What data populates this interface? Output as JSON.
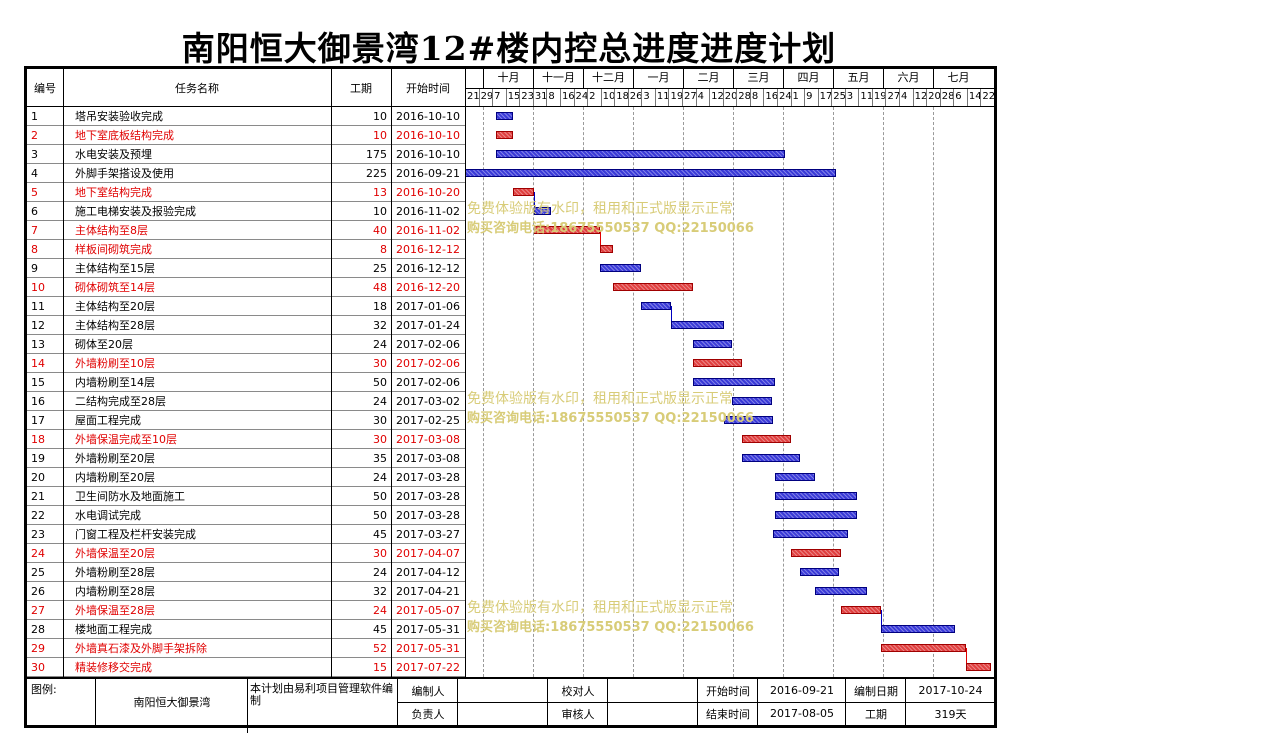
{
  "title": "南阳恒大御景湾12#楼内控总进度进度计划",
  "headers": {
    "id": "编号",
    "name": "任务名称",
    "duration": "工期",
    "start": "开始时间"
  },
  "months": [
    "十月",
    "十一月",
    "十二月",
    "一月",
    "二月",
    "三月",
    "四月",
    "五月",
    "六月",
    "七月"
  ],
  "days": [
    "21",
    "29",
    "7",
    "15",
    "23",
    "31",
    "8",
    "16",
    "24",
    "2",
    "10",
    "18",
    "26",
    "3",
    "11",
    "19",
    "27",
    "4",
    "12",
    "20",
    "28",
    "8",
    "16",
    "24",
    "1",
    "9",
    "17",
    "25",
    "3",
    "11",
    "19",
    "27",
    "4",
    "12",
    "20",
    "28",
    "6",
    "14",
    "22"
  ],
  "tasks": [
    {
      "id": "1",
      "name": "塔吊安装验收完成",
      "duration": "10",
      "start": "2016-10-10",
      "critical": false,
      "startDay": 19,
      "days": 10
    },
    {
      "id": "2",
      "name": "地下室底板结构完成",
      "duration": "10",
      "start": "2016-10-10",
      "critical": true,
      "startDay": 19,
      "days": 10
    },
    {
      "id": "3",
      "name": "水电安装及预埋",
      "duration": "175",
      "start": "2016-10-10",
      "critical": false,
      "startDay": 19,
      "days": 175
    },
    {
      "id": "4",
      "name": "外脚手架搭设及使用",
      "duration": "225",
      "start": "2016-09-21",
      "critical": false,
      "startDay": 0,
      "days": 225
    },
    {
      "id": "5",
      "name": "地下室结构完成",
      "duration": "13",
      "start": "2016-10-20",
      "critical": true,
      "startDay": 29,
      "days": 13
    },
    {
      "id": "6",
      "name": "施工电梯安装及报验完成",
      "duration": "10",
      "start": "2016-11-02",
      "critical": false,
      "startDay": 42,
      "days": 10
    },
    {
      "id": "7",
      "name": "主体结构至8层",
      "duration": "40",
      "start": "2016-11-02",
      "critical": true,
      "startDay": 42,
      "days": 40
    },
    {
      "id": "8",
      "name": "样板间砌筑完成",
      "duration": "8",
      "start": "2016-12-12",
      "critical": true,
      "startDay": 82,
      "days": 8
    },
    {
      "id": "9",
      "name": "主体结构至15层",
      "duration": "25",
      "start": "2016-12-12",
      "critical": false,
      "startDay": 82,
      "days": 25
    },
    {
      "id": "10",
      "name": "砌体砌筑至14层",
      "duration": "48",
      "start": "2016-12-20",
      "critical": true,
      "startDay": 90,
      "days": 48
    },
    {
      "id": "11",
      "name": "主体结构至20层",
      "duration": "18",
      "start": "2017-01-06",
      "critical": false,
      "startDay": 107,
      "days": 18
    },
    {
      "id": "12",
      "name": "主体结构至28层",
      "duration": "32",
      "start": "2017-01-24",
      "critical": false,
      "startDay": 125,
      "days": 32
    },
    {
      "id": "13",
      "name": "砌体至20层",
      "duration": "24",
      "start": "2017-02-06",
      "critical": false,
      "startDay": 138,
      "days": 24
    },
    {
      "id": "14",
      "name": "外墙粉刷至10层",
      "duration": "30",
      "start": "2017-02-06",
      "critical": true,
      "startDay": 138,
      "days": 30
    },
    {
      "id": "15",
      "name": "内墙粉刷至14层",
      "duration": "50",
      "start": "2017-02-06",
      "critical": false,
      "startDay": 138,
      "days": 50
    },
    {
      "id": "16",
      "name": "二结构完成至28层",
      "duration": "24",
      "start": "2017-03-02",
      "critical": false,
      "startDay": 162,
      "days": 24
    },
    {
      "id": "17",
      "name": "屋面工程完成",
      "duration": "30",
      "start": "2017-02-25",
      "critical": false,
      "startDay": 157,
      "days": 30
    },
    {
      "id": "18",
      "name": "外墙保温完成至10层",
      "duration": "30",
      "start": "2017-03-08",
      "critical": true,
      "startDay": 168,
      "days": 30
    },
    {
      "id": "19",
      "name": "外墙粉刷至20层",
      "duration": "35",
      "start": "2017-03-08",
      "critical": false,
      "startDay": 168,
      "days": 35
    },
    {
      "id": "20",
      "name": "内墙粉刷至20层",
      "duration": "24",
      "start": "2017-03-28",
      "critical": false,
      "startDay": 188,
      "days": 24
    },
    {
      "id": "21",
      "name": "卫生间防水及地面施工",
      "duration": "50",
      "start": "2017-03-28",
      "critical": false,
      "startDay": 188,
      "days": 50
    },
    {
      "id": "22",
      "name": "水电调试完成",
      "duration": "50",
      "start": "2017-03-28",
      "critical": false,
      "startDay": 188,
      "days": 50
    },
    {
      "id": "23",
      "name": "门窗工程及栏杆安装完成",
      "duration": "45",
      "start": "2017-03-27",
      "critical": false,
      "startDay": 187,
      "days": 45
    },
    {
      "id": "24",
      "name": "外墙保温至20层",
      "duration": "30",
      "start": "2017-04-07",
      "critical": true,
      "startDay": 198,
      "days": 30
    },
    {
      "id": "25",
      "name": "外墙粉刷至28层",
      "duration": "24",
      "start": "2017-04-12",
      "critical": false,
      "startDay": 203,
      "days": 24
    },
    {
      "id": "26",
      "name": "内墙粉刷至28层",
      "duration": "32",
      "start": "2017-04-21",
      "critical": false,
      "startDay": 212,
      "days": 32
    },
    {
      "id": "27",
      "name": "外墙保温至28层",
      "duration": "24",
      "start": "2017-05-07",
      "critical": true,
      "startDay": 228,
      "days": 24
    },
    {
      "id": "28",
      "name": "楼地面工程完成",
      "duration": "45",
      "start": "2017-05-31",
      "critical": false,
      "startDay": 252,
      "days": 45
    },
    {
      "id": "29",
      "name": "外墙真石漆及外脚手架拆除",
      "duration": "52",
      "start": "2017-05-31",
      "critical": true,
      "startDay": 252,
      "days": 52
    },
    {
      "id": "30",
      "name": "精装修移交完成",
      "duration": "15",
      "start": "2017-07-22",
      "critical": true,
      "startDay": 304,
      "days": 15
    }
  ],
  "footer": {
    "legend_label": "图例:",
    "project": "南阳恒大御景湾",
    "software_note": "本计划由易利项目管理软件编制",
    "compiler_label": "编制人",
    "checker_label": "校对人",
    "owner_label": "负责人",
    "reviewer_label": "审核人",
    "start_label": "开始时间",
    "start_value": "2016-09-21",
    "end_label": "结束时间",
    "end_value": "2017-08-05",
    "date_label": "编制日期",
    "date_value": "2017-10-24",
    "duration_label": "工期",
    "duration_value": "319天"
  },
  "watermark": {
    "line1": "免费体验版有水印，租用和正式版显示正常",
    "line2": "购买咨询电话:18675550537 QQ:22150066"
  },
  "colors": {
    "critical": "#e04040",
    "normal": "#3a3ad8",
    "critical_text": "#e00000"
  }
}
